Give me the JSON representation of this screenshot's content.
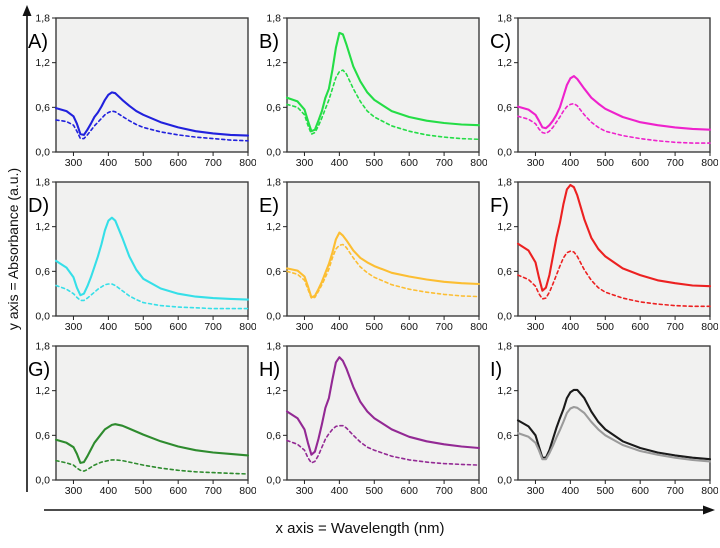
{
  "figure": {
    "x_axis_label": "x axis = Wavelength (nm)",
    "y_axis_label": "y axis = Absorbance (a.u.)",
    "background": "#ffffff",
    "panel_background": "#f1f1f0",
    "border_color": "#3d3d3d",
    "tick_color": "#222222",
    "text_color": "#111111"
  },
  "chart_data": {
    "type": "line",
    "layout": "3x3-grid",
    "title": "",
    "xlabel": "Wavelength (nm)",
    "ylabel": "Absorbance (a.u.)",
    "xlim": [
      250,
      800
    ],
    "ylim": [
      0,
      1.8
    ],
    "xticks": [
      300,
      400,
      500,
      600,
      700,
      800
    ],
    "ytick_values": [
      0.0,
      0.6,
      1.2,
      1.8
    ],
    "ytick_labels": [
      "0,0",
      "0,6",
      "1,2",
      "1,8"
    ],
    "grid": false,
    "legend": "none",
    "x": [
      250,
      280,
      300,
      310,
      320,
      330,
      340,
      350,
      360,
      370,
      380,
      390,
      400,
      410,
      420,
      440,
      460,
      480,
      500,
      550,
      600,
      650,
      700,
      750,
      800
    ],
    "panels": [
      {
        "id": "A",
        "label": "A)",
        "color": "#2121dd",
        "series": [
          {
            "name": "solid",
            "dash": false,
            "y": [
              0.59,
              0.55,
              0.48,
              0.38,
              0.24,
              0.23,
              0.3,
              0.38,
              0.47,
              0.53,
              0.61,
              0.7,
              0.77,
              0.8,
              0.79,
              0.7,
              0.62,
              0.55,
              0.5,
              0.4,
              0.33,
              0.28,
              0.25,
              0.23,
              0.22
            ]
          },
          {
            "name": "dashed",
            "dash": true,
            "y": [
              0.43,
              0.41,
              0.36,
              0.28,
              0.18,
              0.18,
              0.23,
              0.29,
              0.35,
              0.4,
              0.45,
              0.5,
              0.53,
              0.55,
              0.54,
              0.48,
              0.42,
              0.37,
              0.33,
              0.27,
              0.23,
              0.2,
              0.18,
              0.16,
              0.15
            ]
          }
        ]
      },
      {
        "id": "B",
        "label": "B)",
        "color": "#24dd46",
        "series": [
          {
            "name": "solid",
            "dash": false,
            "y": [
              0.73,
              0.68,
              0.57,
              0.42,
              0.28,
              0.3,
              0.42,
              0.55,
              0.73,
              0.85,
              1.1,
              1.4,
              1.6,
              1.58,
              1.45,
              1.15,
              0.95,
              0.8,
              0.7,
              0.55,
              0.47,
              0.42,
              0.39,
              0.37,
              0.36
            ]
          },
          {
            "name": "dashed",
            "dash": true,
            "y": [
              0.64,
              0.6,
              0.5,
              0.36,
              0.24,
              0.26,
              0.35,
              0.46,
              0.58,
              0.7,
              0.85,
              1.0,
              1.08,
              1.1,
              1.05,
              0.85,
              0.68,
              0.55,
              0.47,
              0.35,
              0.28,
              0.23,
              0.2,
              0.18,
              0.17
            ]
          }
        ]
      },
      {
        "id": "C",
        "label": "C)",
        "color": "#ee22cc",
        "series": [
          {
            "name": "solid",
            "dash": false,
            "y": [
              0.61,
              0.57,
              0.5,
              0.42,
              0.33,
              0.32,
              0.36,
              0.42,
              0.5,
              0.6,
              0.75,
              0.9,
              0.99,
              1.02,
              0.98,
              0.85,
              0.73,
              0.65,
              0.58,
              0.47,
              0.4,
              0.36,
              0.33,
              0.31,
              0.3
            ]
          },
          {
            "name": "dashed",
            "dash": true,
            "y": [
              0.48,
              0.44,
              0.38,
              0.31,
              0.26,
              0.25,
              0.28,
              0.33,
              0.4,
              0.47,
              0.55,
              0.61,
              0.64,
              0.65,
              0.62,
              0.5,
              0.4,
              0.33,
              0.28,
              0.22,
              0.18,
              0.15,
              0.13,
              0.12,
              0.12
            ]
          }
        ]
      },
      {
        "id": "D",
        "label": "D)",
        "color": "#35dfe8",
        "series": [
          {
            "name": "solid",
            "dash": false,
            "y": [
              0.74,
              0.65,
              0.52,
              0.38,
              0.28,
              0.3,
              0.4,
              0.52,
              0.66,
              0.8,
              0.96,
              1.15,
              1.28,
              1.32,
              1.28,
              1.05,
              0.8,
              0.62,
              0.5,
              0.37,
              0.3,
              0.26,
              0.24,
              0.23,
              0.22
            ]
          },
          {
            "name": "dashed",
            "dash": true,
            "y": [
              0.41,
              0.36,
              0.3,
              0.25,
              0.21,
              0.21,
              0.24,
              0.28,
              0.32,
              0.36,
              0.39,
              0.42,
              0.43,
              0.43,
              0.41,
              0.34,
              0.27,
              0.22,
              0.18,
              0.14,
              0.12,
              0.11,
              0.1,
              0.1,
              0.1
            ]
          }
        ]
      },
      {
        "id": "E",
        "label": "E)",
        "color": "#fcbe32",
        "series": [
          {
            "name": "solid",
            "dash": false,
            "y": [
              0.64,
              0.61,
              0.53,
              0.4,
              0.25,
              0.27,
              0.36,
              0.46,
              0.58,
              0.7,
              0.85,
              1.03,
              1.12,
              1.08,
              1.02,
              0.88,
              0.78,
              0.72,
              0.67,
              0.58,
              0.53,
              0.49,
              0.46,
              0.44,
              0.43
            ]
          },
          {
            "name": "dashed",
            "dash": true,
            "y": [
              0.6,
              0.56,
              0.48,
              0.36,
              0.24,
              0.25,
              0.33,
              0.42,
              0.52,
              0.63,
              0.78,
              0.9,
              0.95,
              0.96,
              0.92,
              0.78,
              0.66,
              0.58,
              0.52,
              0.42,
              0.36,
              0.32,
              0.29,
              0.27,
              0.26
            ]
          }
        ]
      },
      {
        "id": "F",
        "label": "F)",
        "color": "#ec2121",
        "series": [
          {
            "name": "solid",
            "dash": false,
            "y": [
              0.97,
              0.88,
              0.72,
              0.52,
              0.34,
              0.38,
              0.55,
              0.8,
              1.05,
              1.25,
              1.5,
              1.7,
              1.76,
              1.73,
              1.62,
              1.3,
              1.05,
              0.9,
              0.8,
              0.64,
              0.55,
              0.48,
              0.44,
              0.41,
              0.4
            ]
          },
          {
            "name": "dashed",
            "dash": true,
            "y": [
              0.55,
              0.49,
              0.4,
              0.3,
              0.23,
              0.24,
              0.32,
              0.43,
              0.55,
              0.67,
              0.78,
              0.85,
              0.87,
              0.86,
              0.8,
              0.62,
              0.48,
              0.38,
              0.32,
              0.24,
              0.19,
              0.16,
              0.14,
              0.13,
              0.13
            ]
          }
        ]
      },
      {
        "id": "G",
        "label": "G)",
        "color": "#2e8b2e",
        "series": [
          {
            "name": "solid",
            "dash": false,
            "y": [
              0.54,
              0.5,
              0.44,
              0.35,
              0.23,
              0.24,
              0.32,
              0.41,
              0.5,
              0.56,
              0.62,
              0.68,
              0.71,
              0.74,
              0.75,
              0.73,
              0.69,
              0.65,
              0.61,
              0.52,
              0.45,
              0.4,
              0.37,
              0.35,
              0.33
            ]
          },
          {
            "name": "dashed",
            "dash": true,
            "y": [
              0.26,
              0.23,
              0.2,
              0.16,
              0.13,
              0.12,
              0.14,
              0.17,
              0.2,
              0.22,
              0.24,
              0.25,
              0.26,
              0.27,
              0.27,
              0.26,
              0.24,
              0.22,
              0.2,
              0.16,
              0.13,
              0.11,
              0.1,
              0.09,
              0.08
            ]
          }
        ]
      },
      {
        "id": "H",
        "label": "H)",
        "color": "#932994",
        "series": [
          {
            "name": "solid",
            "dash": false,
            "y": [
              0.92,
              0.83,
              0.68,
              0.5,
              0.34,
              0.38,
              0.55,
              0.75,
              0.97,
              1.1,
              1.35,
              1.58,
              1.65,
              1.6,
              1.5,
              1.25,
              1.05,
              0.92,
              0.83,
              0.68,
              0.58,
              0.52,
              0.48,
              0.45,
              0.43
            ]
          },
          {
            "name": "dashed",
            "dash": true,
            "y": [
              0.53,
              0.48,
              0.4,
              0.3,
              0.23,
              0.25,
              0.33,
              0.44,
              0.55,
              0.62,
              0.68,
              0.72,
              0.73,
              0.73,
              0.7,
              0.6,
              0.51,
              0.44,
              0.4,
              0.32,
              0.27,
              0.24,
              0.22,
              0.21,
              0.2
            ]
          }
        ]
      },
      {
        "id": "I",
        "label": "I)",
        "color": "#1a1a1a",
        "series": [
          {
            "name": "solid-black",
            "dash": false,
            "color": "#1a1a1a",
            "y": [
              0.8,
              0.72,
              0.6,
              0.45,
              0.3,
              0.3,
              0.4,
              0.55,
              0.7,
              0.83,
              0.95,
              1.1,
              1.18,
              1.21,
              1.21,
              1.1,
              0.92,
              0.78,
              0.68,
              0.52,
              0.43,
              0.37,
              0.33,
              0.3,
              0.28
            ]
          },
          {
            "name": "solid-gray",
            "dash": false,
            "color": "#9b9b9b",
            "y": [
              0.63,
              0.58,
              0.5,
              0.4,
              0.28,
              0.28,
              0.36,
              0.46,
              0.57,
              0.67,
              0.78,
              0.9,
              0.96,
              0.98,
              0.97,
              0.9,
              0.78,
              0.68,
              0.6,
              0.47,
              0.39,
              0.34,
              0.3,
              0.27,
              0.25
            ]
          }
        ]
      }
    ]
  }
}
